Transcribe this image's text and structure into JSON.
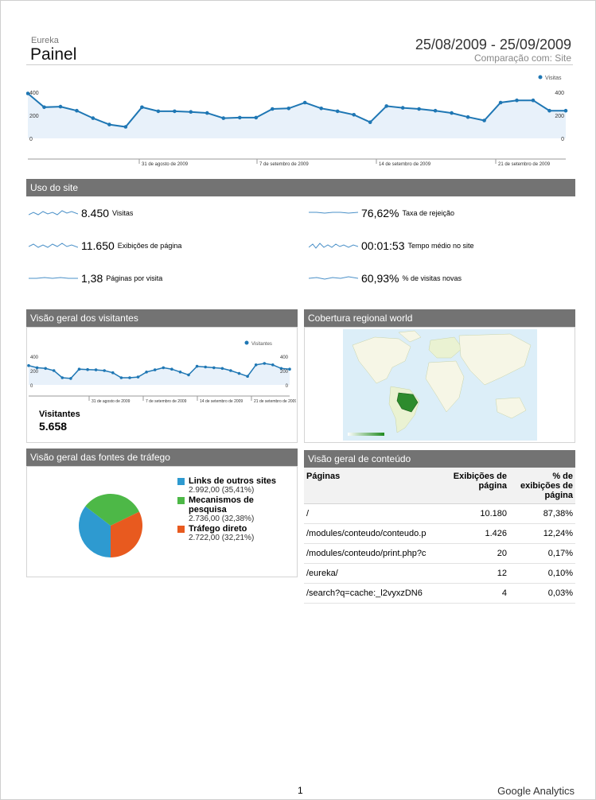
{
  "header": {
    "site": "Eureka",
    "title": "Painel",
    "date_range": "25/08/2009 - 25/09/2009",
    "comparison": "Comparação com: Site"
  },
  "main_chart": {
    "legend": "Visitas",
    "ticks_left": [
      "400",
      "200",
      "0"
    ],
    "ticks_right": [
      "400",
      "200",
      "0"
    ],
    "x_labels": [
      "31 de agosto de 2009",
      "7 de setembro de 2009",
      "14 de setembro de 2009",
      "21 de setembro de 2009"
    ]
  },
  "site_usage": {
    "title": "Uso do site",
    "metrics": [
      {
        "value": "8.450",
        "label": "Visitas"
      },
      {
        "value": "11.650",
        "label": "Exibições de página"
      },
      {
        "value": "1,38",
        "label": "Páginas por visita"
      },
      {
        "value": "76,62%",
        "label": "Taxa de rejeição"
      },
      {
        "value": "00:01:53",
        "label": "Tempo médio no site"
      },
      {
        "value": "60,93%",
        "label": "% de visitas novas"
      }
    ]
  },
  "visitors": {
    "title": "Visão geral dos visitantes",
    "legend": "Visitantes",
    "ticks_left": [
      "400",
      "200",
      "0"
    ],
    "ticks_right": [
      "400",
      "200",
      "0"
    ],
    "x_labels": [
      "31 de agosto de 2009",
      "7 de setembro de 2009",
      "14 de setembro de 2009",
      "21 de setembro de 2009"
    ],
    "label": "Visitantes",
    "value": "5.658"
  },
  "region": {
    "title": "Cobertura regional world"
  },
  "traffic": {
    "title": "Visão geral das fontes de tráfego",
    "items": [
      {
        "name": "Links de outros sites",
        "value": "2.992,00 (35,41%)",
        "color": "#2e9ad0"
      },
      {
        "name": "Mecanismos de pesquisa",
        "value": "2.736,00 (32,38%)",
        "color": "#4db847"
      },
      {
        "name": "Tráfego direto",
        "value": "2.722,00 (32,21%)",
        "color": "#e85a1f"
      }
    ]
  },
  "content": {
    "title": "Visão geral de conteúdo",
    "headers": [
      "Páginas",
      "Exibições de página",
      "% de exibições de página"
    ],
    "rows": [
      {
        "page": "/",
        "views": "10.180",
        "pct": "87,38%"
      },
      {
        "page": "/modules/conteudo/conteudo.p",
        "views": "1.426",
        "pct": "12,24%"
      },
      {
        "page": "/modules/conteudo/print.php?c",
        "views": "20",
        "pct": "0,17%"
      },
      {
        "page": "/eureka/",
        "views": "12",
        "pct": "0,10%"
      },
      {
        "page": "/search?q=cache:_l2vyxzDN6",
        "views": "4",
        "pct": "0,03%"
      }
    ]
  },
  "chart_data": [
    {
      "type": "line",
      "series": [
        {
          "name": "Visitas",
          "values": [
            390,
            270,
            275,
            240,
            175,
            120,
            100,
            270,
            235,
            235,
            230,
            220,
            175,
            180,
            180,
            255,
            260,
            310,
            260,
            235,
            205,
            140,
            280,
            265,
            255,
            240,
            220,
            185,
            155,
            310,
            330,
            330,
            240,
            240
          ]
        }
      ],
      "ylim": [
        0,
        400
      ],
      "legend": "top-right"
    },
    {
      "type": "line",
      "series": [
        {
          "name": "Visitantes",
          "values": [
            270,
            240,
            230,
            200,
            100,
            90,
            220,
            215,
            210,
            200,
            170,
            100,
            100,
            110,
            180,
            210,
            240,
            220,
            180,
            140,
            260,
            250,
            240,
            230,
            200,
            160,
            120,
            280,
            300,
            280,
            230,
            220
          ]
        }
      ],
      "ylim": [
        0,
        400
      ],
      "legend": "top-right"
    },
    {
      "type": "pie",
      "categories": [
        "Links de outros sites",
        "Mecanismos de pesquisa",
        "Tráfego direto"
      ],
      "values": [
        35.41,
        32.38,
        32.21
      ]
    }
  ]
}
